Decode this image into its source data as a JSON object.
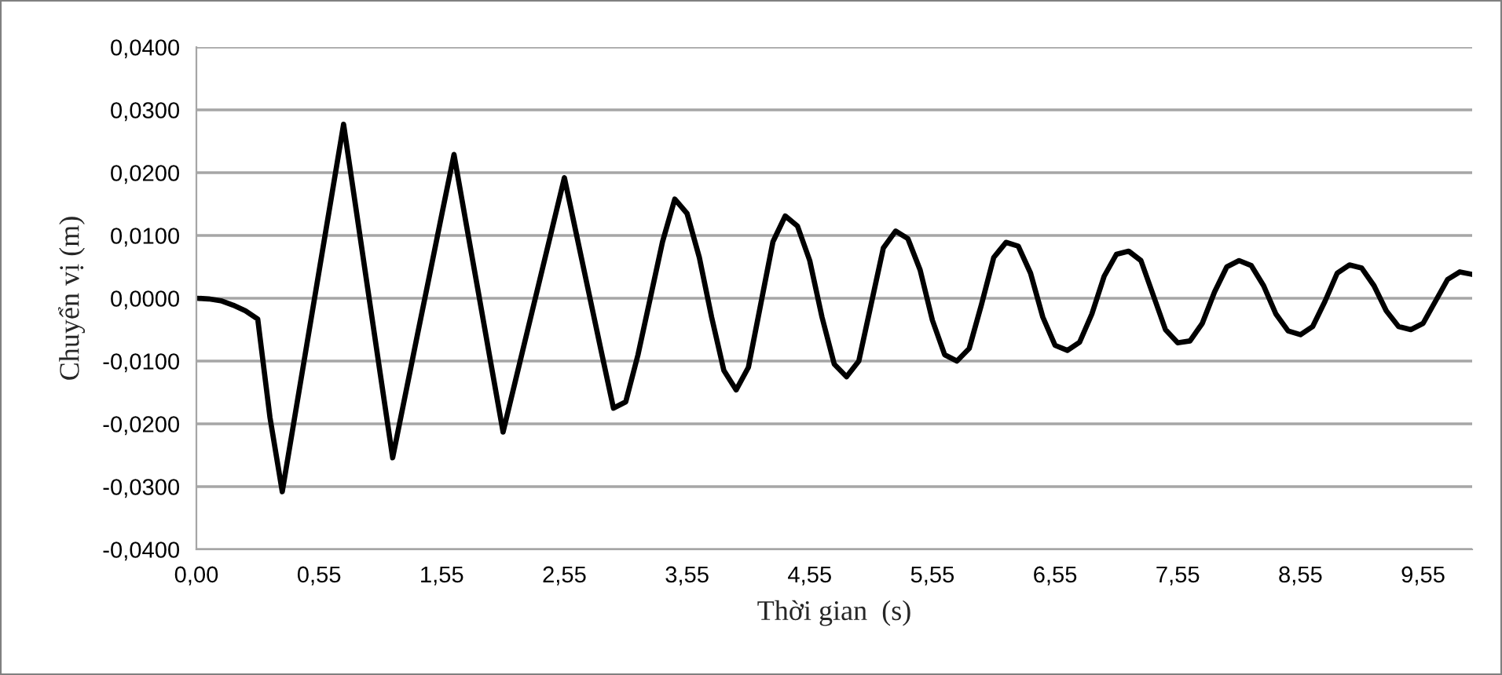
{
  "chart_data": {
    "type": "line",
    "xlabel": "Thời gian  (s)",
    "ylabel": "Chuyển vị (m)",
    "categories": [
      "0,00",
      null,
      null,
      null,
      null,
      null,
      null,
      null,
      null,
      null,
      "0,55",
      null,
      null,
      null,
      null,
      null,
      null,
      null,
      null,
      null,
      "1,55",
      null,
      null,
      null,
      null,
      null,
      null,
      null,
      null,
      null,
      "2,55",
      null,
      null,
      null,
      null,
      null,
      null,
      null,
      null,
      null,
      "3,55",
      null,
      null,
      null,
      null,
      null,
      null,
      null,
      null,
      null,
      "4,55",
      null,
      null,
      null,
      null,
      null,
      null,
      null,
      null,
      null,
      "5,55",
      null,
      null,
      null,
      null,
      null,
      null,
      null,
      null,
      null,
      "6,55",
      null,
      null,
      null,
      null,
      null,
      null,
      null,
      null,
      null,
      "7,55",
      null,
      null,
      null,
      null,
      null,
      null,
      null,
      null,
      null,
      "8,55",
      null,
      null,
      null,
      null,
      null,
      null,
      null,
      null,
      null,
      "9,55",
      null,
      null,
      null,
      null
    ],
    "series": [
      {
        "color": "#000000",
        "values": [
          0,
          -0.0001,
          -0.0004,
          -0.0011,
          -0.002,
          -0.0033,
          -0.019,
          -0.0308,
          -0.0191,
          -0.0074,
          0.0043,
          0.016,
          0.0277,
          0.0144,
          0.0011,
          -0.0122,
          -0.0254,
          -0.0157,
          -0.006,
          0.0036,
          0.0133,
          0.0229,
          0.0118,
          0.0008,
          -0.0103,
          -0.0213,
          -0.0132,
          -0.0051,
          0.003,
          0.0111,
          0.0192,
          0.01,
          0.0008,
          -0.0084,
          -0.0175,
          -0.0165,
          -0.009,
          0.0,
          0.009,
          0.0158,
          0.0135,
          0.0065,
          -0.003,
          -0.0115,
          -0.0146,
          -0.011,
          -0.001,
          0.009,
          0.0131,
          0.0115,
          0.006,
          -0.003,
          -0.0105,
          -0.0125,
          -0.01,
          -0.001,
          0.008,
          0.0107,
          0.0095,
          0.0045,
          -0.0035,
          -0.009,
          -0.01,
          -0.008,
          -0.001,
          0.0065,
          0.0089,
          0.0083,
          0.004,
          -0.003,
          -0.0075,
          -0.0083,
          -0.007,
          -0.0025,
          0.0035,
          0.007,
          0.0075,
          0.006,
          0.0005,
          -0.005,
          -0.0071,
          -0.0068,
          -0.004,
          0.001,
          0.005,
          0.006,
          0.0052,
          0.002,
          -0.0025,
          -0.0052,
          -0.0058,
          -0.0045,
          -0.0005,
          0.004,
          0.0053,
          0.0048,
          0.002,
          -0.002,
          -0.0045,
          -0.005,
          -0.004,
          -0.0005,
          0.003,
          0.0042,
          0.0038
        ]
      }
    ],
    "ylim": [
      -0.04,
      0.04
    ],
    "yticks": [
      {
        "value": -0.04,
        "label": "-0,0400"
      },
      {
        "value": -0.03,
        "label": "-0,0300"
      },
      {
        "value": -0.02,
        "label": "-0,0200"
      },
      {
        "value": -0.01,
        "label": "-0,0100"
      },
      {
        "value": 0,
        "label": "0,0000"
      },
      {
        "value": 0.01,
        "label": "0,0100"
      },
      {
        "value": 0.02,
        "label": "0,0200"
      },
      {
        "value": 0.03,
        "label": "0,0300"
      },
      {
        "value": 0.04,
        "label": "0,0400"
      }
    ],
    "grid": "y",
    "legend": false
  }
}
